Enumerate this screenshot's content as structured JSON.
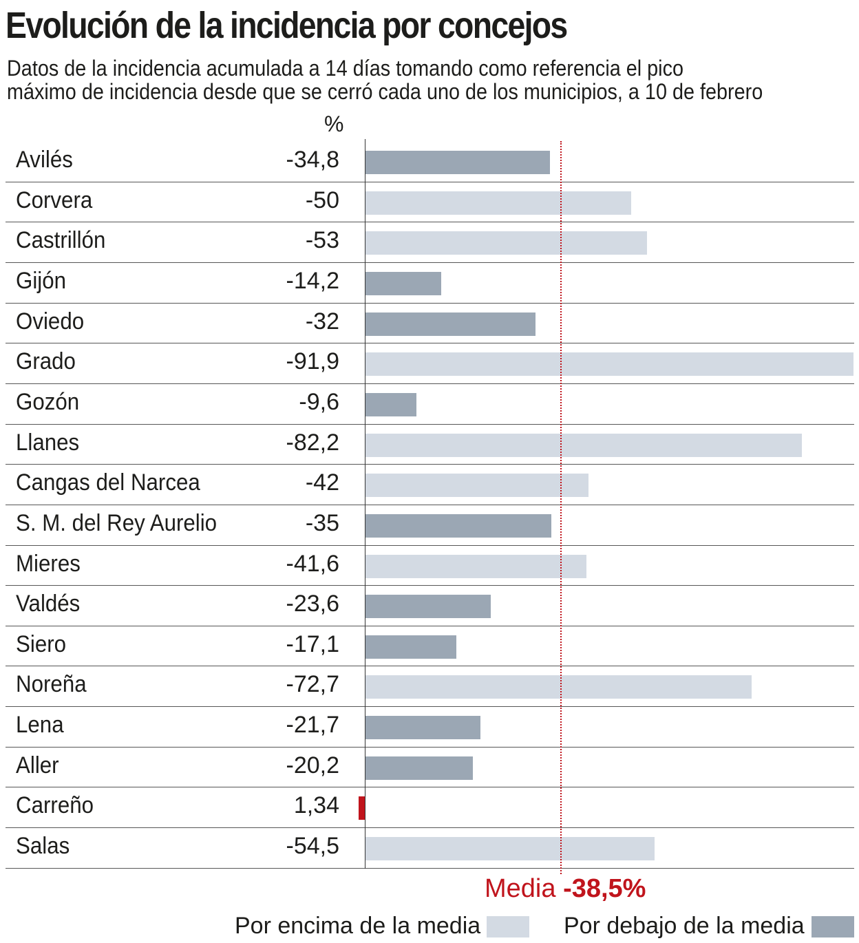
{
  "title": "Evolución de la incidencia por concejos",
  "subtitle_line1": "Datos de la incidencia acumulada a 14 días tomando como referencia el pico",
  "subtitle_line2": "máximo de incidencia desde que se cerró cada uno de los municipios, a 10 de febrero",
  "colors": {
    "above": "#d3dae3",
    "below": "#9ba7b4",
    "positive": "#c0141c",
    "media": "#c0141c"
  },
  "chart_data": {
    "type": "bar",
    "orientation": "horizontal",
    "unit_label": "%",
    "categories": [
      "Avilés",
      "Corvera",
      "Castrillón",
      "Gijón",
      "Oviedo",
      "Grado",
      "Gozón",
      "Llanes",
      "Cangas del Narcea",
      "S. M. del Rey Aurelio",
      "Mieres",
      "Valdés",
      "Siero",
      "Noreña",
      "Lena",
      "Aller",
      "Carreño",
      "Salas"
    ],
    "values": [
      -34.8,
      -50,
      -53,
      -14.2,
      -32,
      -91.9,
      -9.6,
      -82.2,
      -42,
      -35,
      -41.6,
      -23.6,
      -17.1,
      -72.7,
      -21.7,
      -20.2,
      1.34,
      -54.5
    ],
    "value_labels": [
      "-34,8",
      "-50",
      "-53",
      "-14,2",
      "-32",
      "-91,9",
      "-9,6",
      "-82,2",
      "-42",
      "-35",
      "-41,6",
      "-23,6",
      "-17,1",
      "-72,7",
      "-21,7",
      "-20,2",
      "1,34",
      "-54,5"
    ],
    "reference_line": {
      "value": -38.5,
      "label": "Media",
      "value_label": "-38,5%"
    },
    "legend": [
      {
        "label": "Por encima de la media",
        "color": "#d3dae3"
      },
      {
        "label": "Por debajo de la media",
        "color": "#9ba7b4"
      }
    ]
  }
}
